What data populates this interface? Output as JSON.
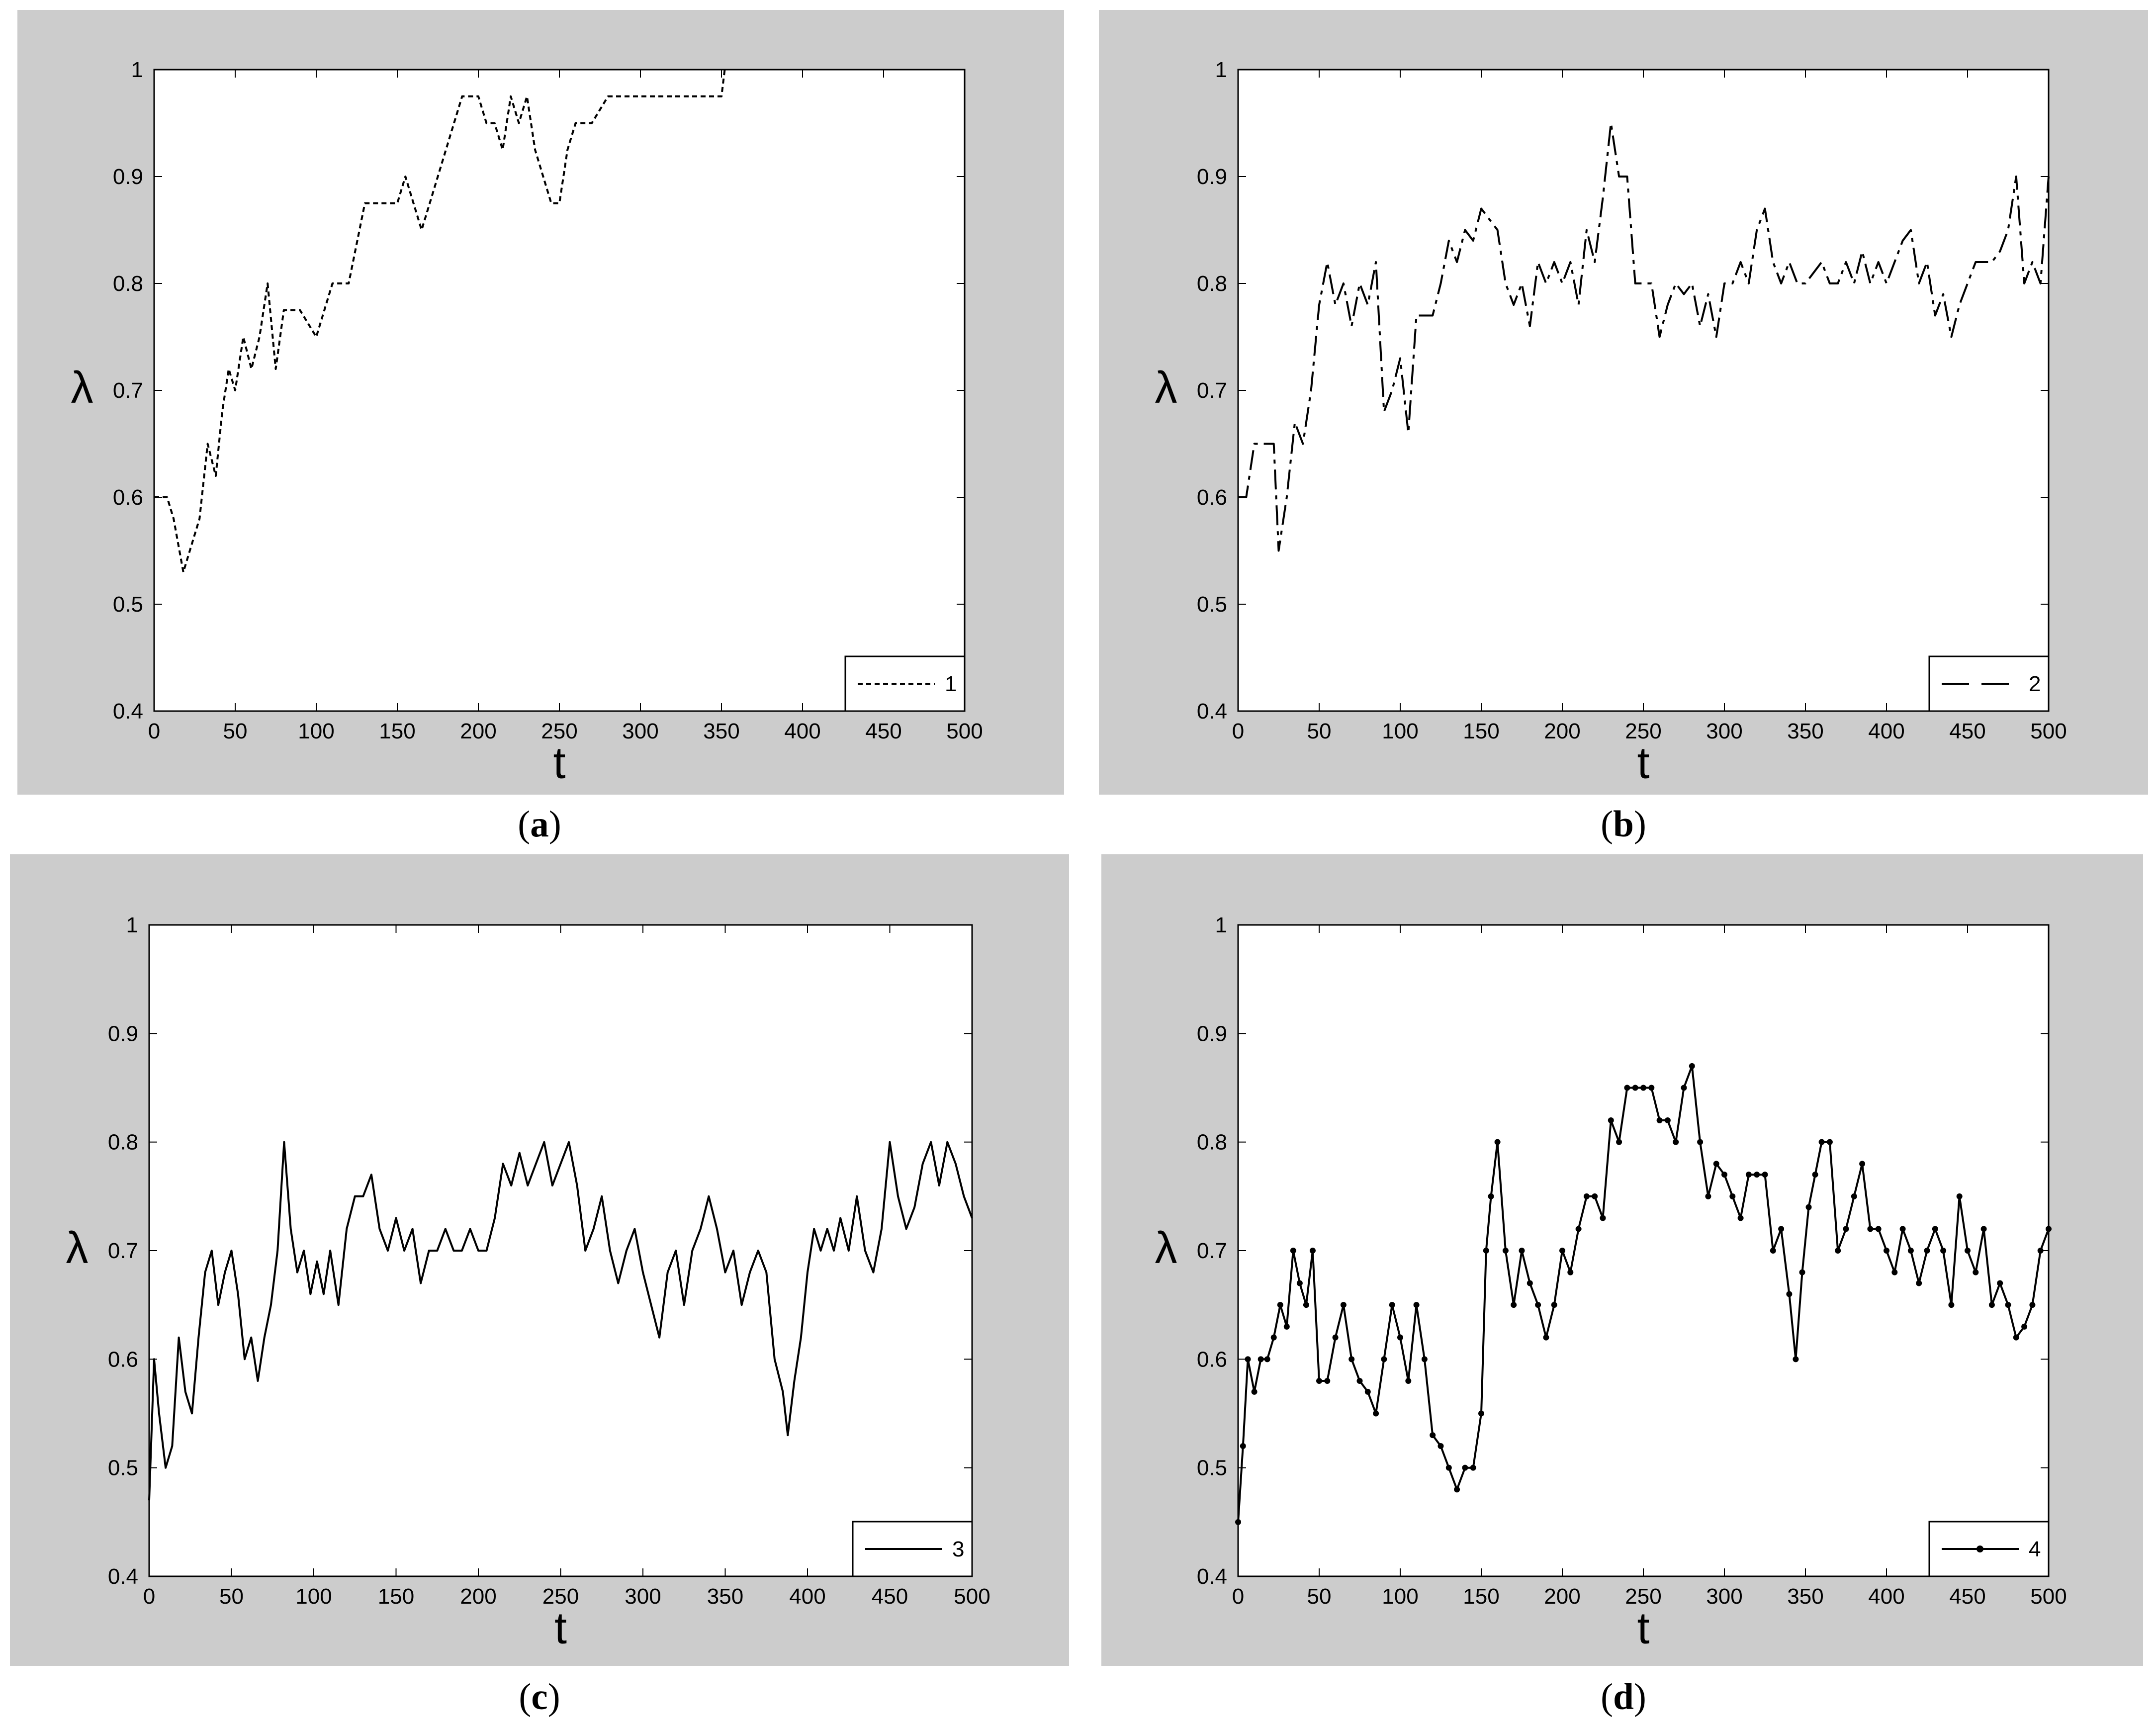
{
  "colors": {
    "figure_bg": "#cccccc",
    "axes_bg": "#ffffff",
    "line": "#000000"
  },
  "chart_data": [
    {
      "panel": "(a)",
      "caption_letter": "a",
      "type": "line",
      "xlabel": "t",
      "ylabel": "λ",
      "xlim": [
        0,
        500
      ],
      "ylim": [
        0.4,
        1
      ],
      "xticks": [
        "0",
        "50",
        "100",
        "150",
        "200",
        "250",
        "300",
        "350",
        "400",
        "450",
        "500"
      ],
      "yticks": [
        "0.4",
        "0.5",
        "0.6",
        "0.7",
        "0.8",
        "0.9",
        "1"
      ],
      "grid": false,
      "legend_position": "bottom-right",
      "line_style": "dotted",
      "series": [
        {
          "name": "1",
          "x": [
            0,
            8,
            12,
            18,
            22,
            28,
            33,
            38,
            42,
            46,
            50,
            55,
            60,
            65,
            70,
            75,
            80,
            90,
            100,
            105,
            110,
            120,
            130,
            140,
            150,
            155,
            160,
            165,
            170,
            175,
            180,
            190,
            200,
            205,
            210,
            215,
            220,
            225,
            230,
            235,
            240,
            245,
            250,
            255,
            260,
            270,
            280,
            300,
            320,
            340,
            350,
            352
          ],
          "y": [
            0.6,
            0.6,
            0.58,
            0.53,
            0.55,
            0.58,
            0.65,
            0.62,
            0.68,
            0.72,
            0.7,
            0.75,
            0.72,
            0.75,
            0.8,
            0.72,
            0.775,
            0.775,
            0.75,
            0.775,
            0.8,
            0.8,
            0.875,
            0.875,
            0.875,
            0.9,
            0.875,
            0.85,
            0.875,
            0.9,
            0.925,
            0.975,
            0.975,
            0.95,
            0.95,
            0.925,
            0.975,
            0.95,
            0.975,
            0.925,
            0.9,
            0.875,
            0.875,
            0.925,
            0.95,
            0.95,
            0.975,
            0.975,
            0.975,
            0.975,
            0.975,
            1.0
          ]
        }
      ]
    },
    {
      "panel": "(b)",
      "caption_letter": "b",
      "type": "line",
      "xlabel": "t",
      "ylabel": "λ",
      "xlim": [
        0,
        500
      ],
      "ylim": [
        0.4,
        1
      ],
      "xticks": [
        "0",
        "50",
        "100",
        "150",
        "200",
        "250",
        "300",
        "350",
        "400",
        "450",
        "500"
      ],
      "yticks": [
        "0.4",
        "0.5",
        "0.6",
        "0.7",
        "0.8",
        "0.9",
        "1"
      ],
      "grid": false,
      "legend_position": "bottom-right",
      "line_style": "dash-dot",
      "series": [
        {
          "name": "2",
          "x": [
            0,
            5,
            10,
            15,
            22,
            25,
            30,
            35,
            40,
            45,
            50,
            55,
            60,
            65,
            70,
            75,
            80,
            85,
            90,
            95,
            100,
            105,
            110,
            120,
            125,
            130,
            135,
            140,
            145,
            150,
            155,
            160,
            165,
            170,
            175,
            180,
            185,
            190,
            195,
            200,
            205,
            210,
            215,
            220,
            225,
            230,
            235,
            240,
            245,
            250,
            255,
            260,
            265,
            270,
            275,
            280,
            285,
            290,
            295,
            300,
            305,
            310,
            315,
            320,
            325,
            330,
            335,
            340,
            345,
            350,
            355,
            360,
            365,
            370,
            375,
            380,
            385,
            390,
            395,
            400,
            405,
            410,
            415,
            420,
            425,
            430,
            435,
            440,
            445,
            450,
            455,
            460,
            465,
            470,
            475,
            480,
            485,
            490,
            495,
            500
          ],
          "y": [
            0.6,
            0.6,
            0.65,
            0.65,
            0.65,
            0.55,
            0.6,
            0.67,
            0.65,
            0.7,
            0.78,
            0.82,
            0.78,
            0.8,
            0.76,
            0.8,
            0.78,
            0.82,
            0.68,
            0.7,
            0.73,
            0.66,
            0.77,
            0.77,
            0.8,
            0.84,
            0.82,
            0.85,
            0.84,
            0.87,
            0.86,
            0.85,
            0.8,
            0.78,
            0.8,
            0.76,
            0.82,
            0.8,
            0.82,
            0.8,
            0.82,
            0.78,
            0.85,
            0.82,
            0.88,
            0.95,
            0.9,
            0.9,
            0.8,
            0.8,
            0.8,
            0.75,
            0.78,
            0.8,
            0.79,
            0.8,
            0.76,
            0.79,
            0.75,
            0.8,
            0.8,
            0.82,
            0.8,
            0.85,
            0.87,
            0.82,
            0.8,
            0.82,
            0.8,
            0.8,
            0.81,
            0.82,
            0.8,
            0.8,
            0.82,
            0.8,
            0.83,
            0.8,
            0.82,
            0.8,
            0.82,
            0.84,
            0.85,
            0.8,
            0.82,
            0.77,
            0.79,
            0.75,
            0.78,
            0.8,
            0.82,
            0.82,
            0.82,
            0.83,
            0.85,
            0.9,
            0.8,
            0.82,
            0.8,
            0.9
          ]
        }
      ]
    },
    {
      "panel": "(c)",
      "caption_letter": "c",
      "type": "line",
      "xlabel": "t",
      "ylabel": "λ",
      "xlim": [
        0,
        500
      ],
      "ylim": [
        0.4,
        1
      ],
      "xticks": [
        "0",
        "50",
        "100",
        "150",
        "200",
        "250",
        "300",
        "350",
        "400",
        "450",
        "500"
      ],
      "yticks": [
        "0.4",
        "0.5",
        "0.6",
        "0.7",
        "0.8",
        "0.9",
        "1"
      ],
      "grid": false,
      "legend_position": "bottom-right",
      "line_style": "solid",
      "series": [
        {
          "name": "3",
          "x": [
            0,
            3,
            6,
            10,
            14,
            18,
            22,
            26,
            30,
            34,
            38,
            42,
            46,
            50,
            54,
            58,
            62,
            66,
            70,
            74,
            78,
            82,
            86,
            90,
            94,
            98,
            102,
            106,
            110,
            115,
            120,
            125,
            130,
            135,
            140,
            145,
            150,
            155,
            160,
            165,
            170,
            175,
            180,
            185,
            190,
            195,
            200,
            205,
            210,
            215,
            220,
            225,
            230,
            235,
            240,
            245,
            250,
            255,
            260,
            265,
            270,
            275,
            280,
            285,
            290,
            295,
            300,
            305,
            310,
            315,
            320,
            325,
            330,
            335,
            340,
            345,
            350,
            355,
            360,
            365,
            370,
            375,
            380,
            385,
            388,
            392,
            396,
            400,
            404,
            408,
            412,
            416,
            420,
            425,
            430,
            435,
            440,
            445,
            450,
            455,
            460,
            465,
            470,
            475,
            480,
            485,
            490,
            495,
            500
          ],
          "y": [
            0.47,
            0.6,
            0.55,
            0.5,
            0.52,
            0.62,
            0.57,
            0.55,
            0.62,
            0.68,
            0.7,
            0.65,
            0.68,
            0.7,
            0.66,
            0.6,
            0.62,
            0.58,
            0.62,
            0.65,
            0.7,
            0.8,
            0.72,
            0.68,
            0.7,
            0.66,
            0.69,
            0.66,
            0.7,
            0.65,
            0.72,
            0.75,
            0.75,
            0.77,
            0.72,
            0.7,
            0.73,
            0.7,
            0.72,
            0.67,
            0.7,
            0.7,
            0.72,
            0.7,
            0.7,
            0.72,
            0.7,
            0.7,
            0.73,
            0.78,
            0.76,
            0.79,
            0.76,
            0.78,
            0.8,
            0.76,
            0.78,
            0.8,
            0.76,
            0.7,
            0.72,
            0.75,
            0.7,
            0.67,
            0.7,
            0.72,
            0.68,
            0.65,
            0.62,
            0.68,
            0.7,
            0.65,
            0.7,
            0.72,
            0.75,
            0.72,
            0.68,
            0.7,
            0.65,
            0.68,
            0.7,
            0.68,
            0.6,
            0.57,
            0.53,
            0.58,
            0.62,
            0.68,
            0.72,
            0.7,
            0.72,
            0.7,
            0.73,
            0.7,
            0.75,
            0.7,
            0.68,
            0.72,
            0.8,
            0.75,
            0.72,
            0.74,
            0.78,
            0.8,
            0.76,
            0.8,
            0.78,
            0.75,
            0.73
          ]
        }
      ]
    },
    {
      "panel": "(d)",
      "caption_letter": "d",
      "type": "line",
      "xlabel": "t",
      "ylabel": "λ",
      "xlim": [
        0,
        500
      ],
      "ylim": [
        0.4,
        1
      ],
      "xticks": [
        "0",
        "50",
        "100",
        "150",
        "200",
        "250",
        "300",
        "350",
        "400",
        "450",
        "500"
      ],
      "yticks": [
        "0.4",
        "0.5",
        "0.6",
        "0.7",
        "0.8",
        "0.9",
        "1"
      ],
      "grid": false,
      "legend_position": "bottom-right",
      "line_style": "solid-with-markers",
      "series": [
        {
          "name": "4",
          "x": [
            0,
            3,
            6,
            10,
            14,
            18,
            22,
            26,
            30,
            34,
            38,
            42,
            46,
            50,
            55,
            60,
            65,
            70,
            75,
            80,
            85,
            90,
            95,
            100,
            105,
            110,
            115,
            120,
            125,
            130,
            135,
            140,
            145,
            150,
            153,
            156,
            160,
            165,
            170,
            175,
            180,
            185,
            190,
            195,
            200,
            205,
            210,
            215,
            220,
            225,
            230,
            235,
            240,
            245,
            250,
            255,
            260,
            265,
            270,
            275,
            280,
            285,
            290,
            295,
            300,
            305,
            310,
            315,
            320,
            325,
            330,
            335,
            340,
            344,
            348,
            352,
            356,
            360,
            365,
            370,
            375,
            380,
            385,
            390,
            395,
            400,
            405,
            410,
            415,
            420,
            425,
            430,
            435,
            440,
            445,
            450,
            455,
            460,
            465,
            470,
            475,
            480,
            485,
            490,
            495,
            500
          ],
          "y": [
            0.45,
            0.52,
            0.6,
            0.57,
            0.6,
            0.6,
            0.62,
            0.65,
            0.63,
            0.7,
            0.67,
            0.65,
            0.7,
            0.58,
            0.58,
            0.62,
            0.65,
            0.6,
            0.58,
            0.57,
            0.55,
            0.6,
            0.65,
            0.62,
            0.58,
            0.65,
            0.6,
            0.53,
            0.52,
            0.5,
            0.48,
            0.5,
            0.5,
            0.55,
            0.7,
            0.75,
            0.8,
            0.7,
            0.65,
            0.7,
            0.67,
            0.65,
            0.62,
            0.65,
            0.7,
            0.68,
            0.72,
            0.75,
            0.75,
            0.73,
            0.82,
            0.8,
            0.85,
            0.85,
            0.85,
            0.85,
            0.82,
            0.82,
            0.8,
            0.85,
            0.87,
            0.8,
            0.75,
            0.78,
            0.77,
            0.75,
            0.73,
            0.77,
            0.77,
            0.77,
            0.7,
            0.72,
            0.66,
            0.6,
            0.68,
            0.74,
            0.77,
            0.8,
            0.8,
            0.7,
            0.72,
            0.75,
            0.78,
            0.72,
            0.72,
            0.7,
            0.68,
            0.72,
            0.7,
            0.67,
            0.7,
            0.72,
            0.7,
            0.65,
            0.75,
            0.7,
            0.68,
            0.72,
            0.65,
            0.67,
            0.65,
            0.62,
            0.63,
            0.65,
            0.7,
            0.72
          ]
        }
      ]
    }
  ]
}
